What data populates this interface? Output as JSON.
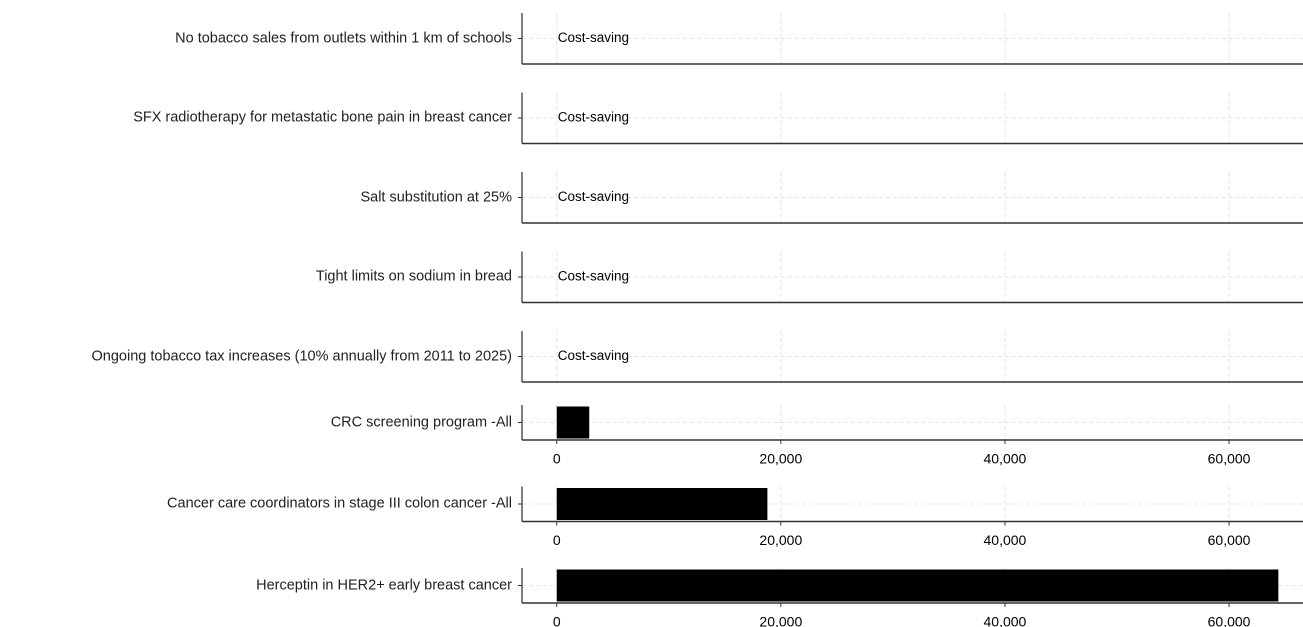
{
  "chart_data": {
    "type": "bar",
    "orientation": "horizontal",
    "categories": [
      "No tobacco sales from outlets within 1 km of schools",
      "SFX radiotherapy for metastatic bone pain in breast cancer",
      "Salt substitution at 25%",
      "Tight limits on sodium in bread",
      "Ongoing tobacco tax increases (10% annually from 2011 to 2025)",
      "CRC screening program -All",
      "Cancer care coordinators in stage III colon cancer -All",
      "Herceptin in HER2+ early breast cancer"
    ],
    "values": [
      null,
      null,
      null,
      null,
      null,
      2900,
      18800,
      64400
    ],
    "value_labels": [
      "Cost-saving",
      "Cost-saving",
      "Cost-saving",
      "Cost-saving",
      "Cost-saving",
      null,
      null,
      null
    ],
    "color": "#000000",
    "xlim": [
      -3100,
      66600
    ],
    "xticks": [
      0,
      {
        "value": 20000,
        "label": "20,000"
      },
      {
        "value": 40000,
        "label": "40,000"
      },
      {
        "value": 60000,
        "label": "60,000"
      }
    ],
    "grid": true
  }
}
